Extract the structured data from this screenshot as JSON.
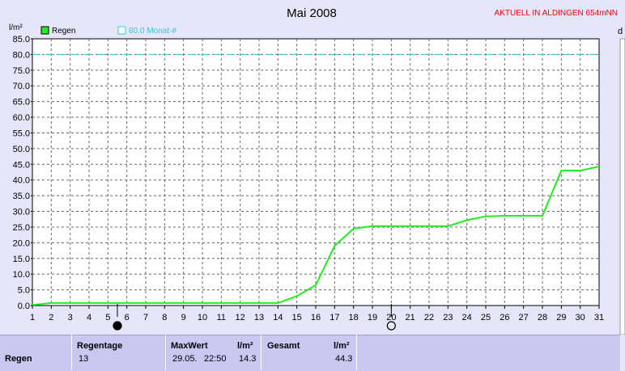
{
  "chart_data": {
    "type": "line",
    "title": "Mai 2008",
    "station_label": "AKTUELL IN ALDINGEN 654mNN",
    "ylabel": "l/m²",
    "right_label": "d",
    "ylim": [
      0,
      85
    ],
    "yticks": [
      "0.0",
      "5.0",
      "10.0",
      "15.0",
      "20.0",
      "25.0",
      "30.0",
      "35.0",
      "40.0",
      "45.0",
      "50.0",
      "55.0",
      "60.0",
      "65.0",
      "70.0",
      "75.0",
      "80.0",
      "85.0"
    ],
    "x": [
      1,
      2,
      3,
      4,
      5,
      6,
      7,
      8,
      9,
      10,
      11,
      12,
      13,
      14,
      15,
      16,
      17,
      18,
      19,
      20,
      21,
      22,
      23,
      24,
      25,
      26,
      27,
      28,
      29,
      30,
      31
    ],
    "grid": true,
    "legend_position": "top-left",
    "series": [
      {
        "name": "Regen",
        "color": "#22ee22",
        "values": [
          0.2,
          0.8,
          0.8,
          0.8,
          0.8,
          0.8,
          0.8,
          0.8,
          0.8,
          0.8,
          0.8,
          0.8,
          0.8,
          0.8,
          3.0,
          6.5,
          19.0,
          24.5,
          25.3,
          25.3,
          25.3,
          25.3,
          25.3,
          27.2,
          28.4,
          28.6,
          28.6,
          28.6,
          43.0,
          43.0,
          44.3
        ]
      }
    ],
    "reference_line": {
      "name": "80.0 Monat-#",
      "value": 80.0,
      "color": "#33cccc"
    },
    "moon_markers": [
      {
        "day": 5.5,
        "kind": "new-moon"
      },
      {
        "day": 20,
        "kind": "full-moon"
      }
    ]
  },
  "stats": {
    "row_label": "Regen",
    "regentage_label": "Regentage",
    "regentage_value": "13",
    "maxwert_label": "MaxWert",
    "maxwert_unit": "l/m²",
    "maxwert_date": "29.05.",
    "maxwert_time": "22:50",
    "maxwert_value": "14.3",
    "gesamt_label": "Gesamt",
    "gesamt_unit": "l/m²",
    "gesamt_value": "44.3"
  }
}
